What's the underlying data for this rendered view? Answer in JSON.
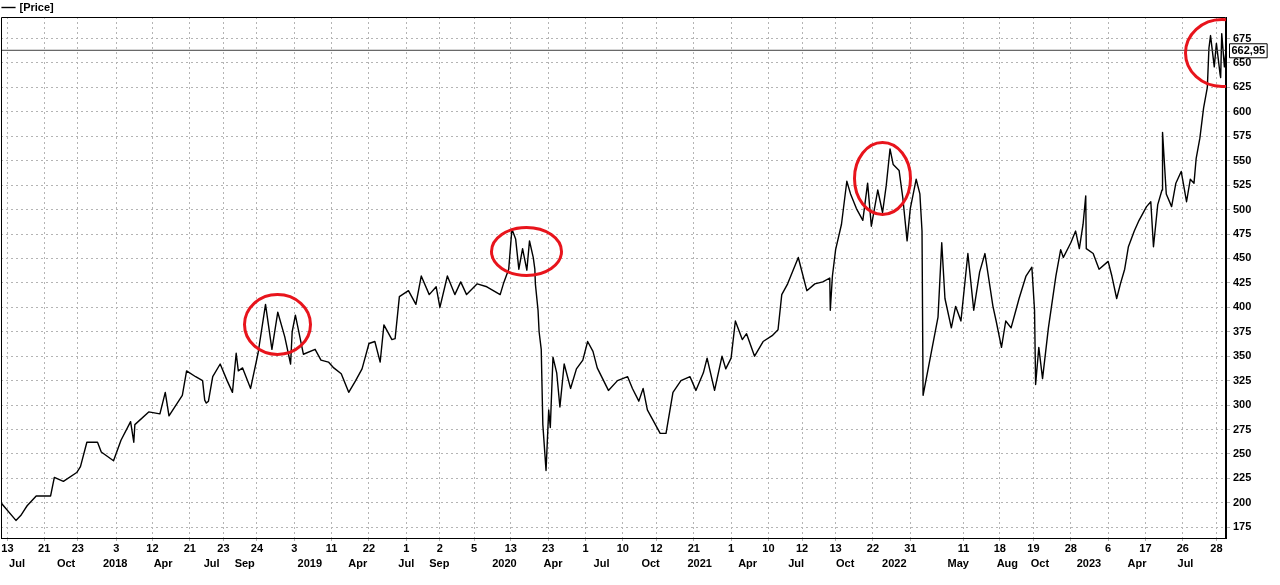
{
  "chart_data": {
    "type": "line",
    "legend": "top left",
    "grid": true,
    "marker": "none",
    "line_style": "solid",
    "x": [
      "2017-06-01",
      "2017-06-29",
      "2017-07-08",
      "2017-07-20",
      "2017-08-06",
      "2017-09-02",
      "2017-09-09",
      "2017-09-26",
      "2017-10-21",
      "2017-10-28",
      "2017-11-09",
      "2017-11-29",
      "2017-12-06",
      "2017-12-29",
      "2018-01-12",
      "2018-01-30",
      "2018-02-05",
      "2018-02-07",
      "2018-03-05",
      "2018-03-26",
      "2018-04-05",
      "2018-04-12",
      "2018-05-07",
      "2018-05-15",
      "2018-06-01",
      "2018-06-14",
      "2018-06-18",
      "2018-06-21",
      "2018-06-25",
      "2018-07-03",
      "2018-07-17",
      "2018-07-30",
      "2018-08-09",
      "2018-08-16",
      "2018-08-20",
      "2018-08-28",
      "2018-09-12",
      "2018-09-26",
      "2018-10-10",
      "2018-10-22",
      "2018-11-02",
      "2018-11-15",
      "2018-11-26",
      "2018-11-29",
      "2018-12-05",
      "2018-12-20",
      "2019-01-11",
      "2019-01-22",
      "2019-02-05",
      "2019-02-15",
      "2019-03-01",
      "2019-03-15",
      "2019-03-28",
      "2019-04-09",
      "2019-04-22",
      "2019-05-03",
      "2019-05-13",
      "2019-05-20",
      "2019-06-04",
      "2019-06-10",
      "2019-06-18",
      "2019-07-05",
      "2019-07-19",
      "2019-07-29",
      "2019-08-13",
      "2019-08-26",
      "2019-09-02",
      "2019-09-16",
      "2019-09-30",
      "2019-10-11",
      "2019-10-22",
      "2019-11-11",
      "2019-11-29",
      "2019-12-24",
      "2019-12-30",
      "2020-01-09",
      "2020-01-15",
      "2020-01-22",
      "2020-01-28",
      "2020-02-04",
      "2020-02-12",
      "2020-02-17",
      "2020-02-24",
      "2020-02-27",
      "2020-02-28",
      "2020-03-04",
      "2020-03-06",
      "2020-03-10",
      "2020-03-13",
      "2020-03-19",
      "2020-03-24",
      "2020-03-27",
      "2020-04-01",
      "2020-04-08",
      "2020-04-14",
      "2020-04-22",
      "2020-05-04",
      "2020-05-15",
      "2020-05-27",
      "2020-06-05",
      "2020-06-15",
      "2020-06-23",
      "2020-07-14",
      "2020-07-31",
      "2020-08-19",
      "2020-08-28",
      "2020-09-09",
      "2020-09-17",
      "2020-09-25",
      "2020-10-19",
      "2020-10-30",
      "2020-11-12",
      "2020-11-27",
      "2020-12-14",
      "2020-12-25",
      "2021-01-08",
      "2021-01-15",
      "2021-01-29",
      "2021-02-12",
      "2021-02-19",
      "2021-03-01",
      "2021-03-09",
      "2021-03-22",
      "2021-03-30",
      "2021-04-14",
      "2021-04-30",
      "2021-05-17",
      "2021-05-28",
      "2021-06-04",
      "2021-06-15",
      "2021-07-05",
      "2021-07-21",
      "2021-08-05",
      "2021-08-20",
      "2021-09-02",
      "2021-09-03",
      "2021-09-07",
      "2021-09-13",
      "2021-09-24",
      "2021-10-04",
      "2021-10-11",
      "2021-10-22",
      "2021-11-03",
      "2021-11-12",
      "2021-11-19",
      "2021-12-01",
      "2021-12-10",
      "2021-12-17",
      "2021-12-24",
      "2021-12-30",
      "2022-01-10",
      "2022-01-17",
      "2022-01-25",
      "2022-01-31",
      "2022-02-11",
      "2022-02-18",
      "2022-02-22",
      "2022-02-24",
      "2022-03-24",
      "2022-03-31",
      "2022-04-06",
      "2022-04-18",
      "2022-04-26",
      "2022-05-06",
      "2022-05-19",
      "2022-05-30",
      "2022-06-10",
      "2022-06-20",
      "2022-07-05",
      "2022-07-11",
      "2022-07-21",
      "2022-07-29",
      "2022-08-08",
      "2022-08-23",
      "2022-09-05",
      "2022-09-16",
      "2022-09-21",
      "2022-09-23",
      "2022-09-29",
      "2022-10-06",
      "2022-10-17",
      "2022-10-31",
      "2022-11-09",
      "2022-11-14",
      "2022-11-28",
      "2022-12-07",
      "2022-12-14",
      "2022-12-21",
      "2022-12-26",
      "2022-12-27",
      "2023-01-09",
      "2023-01-20",
      "2023-02-06",
      "2023-02-13",
      "2023-02-22",
      "2023-03-01",
      "2023-03-09",
      "2023-03-16",
      "2023-03-27",
      "2023-04-05",
      "2023-04-19",
      "2023-04-27",
      "2023-05-02",
      "2023-05-10",
      "2023-05-18",
      "2023-05-19",
      "2023-05-26",
      "2023-06-05",
      "2023-06-13",
      "2023-06-23",
      "2023-07-03",
      "2023-07-10",
      "2023-07-17",
      "2023-07-21",
      "2023-07-28",
      "2023-08-04",
      "2023-08-11",
      "2023-08-14",
      "2023-08-17",
      "2023-08-24",
      "2023-08-28",
      "2023-09-04",
      "2023-09-05",
      "2023-09-07",
      "2023-09-12",
      "2023-09-15"
    ],
    "series": [
      {
        "name": "[Price]",
        "color": "#000000",
        "values": [
          200,
          182,
          187,
          197,
          207,
          207,
          226,
          222,
          231,
          237,
          262,
          262,
          252,
          243,
          264,
          283,
          262,
          280,
          293,
          291,
          313,
          289,
          310,
          335,
          329,
          325,
          305,
          302,
          304,
          329,
          342,
          325,
          313,
          353,
          335,
          338,
          317,
          353,
          403,
          357,
          395,
          370,
          342,
          375,
          392,
          352,
          357,
          346,
          344,
          338,
          332,
          313,
          325,
          337,
          363,
          365,
          344,
          382,
          367,
          368,
          411,
          417,
          403,
          432,
          413,
          421,
          400,
          432,
          413,
          426,
          413,
          424,
          421,
          413,
          424,
          439,
          480,
          470,
          439,
          460,
          438,
          468,
          451,
          439,
          424,
          397,
          375,
          357,
          280,
          233,
          295,
          277,
          349,
          333,
          298,
          342,
          317,
          337,
          346,
          365,
          355,
          338,
          315,
          325,
          329,
          317,
          304,
          317,
          295,
          271,
          271,
          313,
          325,
          329,
          315,
          333,
          348,
          315,
          350,
          337,
          348,
          386,
          367,
          373,
          350,
          365,
          371,
          377,
          413,
          424,
          451,
          417,
          424,
          426,
          430,
          397,
          432,
          459,
          485,
          529,
          516,
          501,
          489,
          527,
          483,
          520,
          497,
          525,
          562,
          546,
          540,
          512,
          468,
          501,
          531,
          516,
          478,
          310,
          390,
          466,
          409,
          379,
          401,
          386,
          455,
          397,
          436,
          455,
          401,
          386,
          359,
          386,
          379,
          409,
          432,
          441,
          397,
          321,
          359,
          327,
          379,
          432,
          459,
          451,
          466,
          478,
          460,
          485,
          514,
          460,
          455,
          439,
          447,
          432,
          409,
          424,
          439,
          462,
          478,
          489,
          503,
          508,
          462,
          505,
          520,
          579,
          516,
          503,
          527,
          539,
          508,
          531,
          527,
          552,
          573,
          604,
          625,
          665,
          678,
          646,
          670,
          638,
          635,
          680,
          646,
          663
        ]
      }
    ],
    "xlim": [
      "2017-06-01",
      "2023-09-15"
    ],
    "xticks": [
      {
        "value": "2017-06-13",
        "label": "13"
      },
      {
        "value": "2017-08-21",
        "label": "21"
      },
      {
        "value": "2017-10-23",
        "label": "23"
      },
      {
        "value": "2018-01-03",
        "label": "3"
      },
      {
        "value": "2018-03-12",
        "label": "12"
      },
      {
        "value": "2018-05-21",
        "label": "21"
      },
      {
        "value": "2018-07-23",
        "label": "23"
      },
      {
        "value": "2018-09-24",
        "label": "24"
      },
      {
        "value": "2018-12-03",
        "label": "3"
      },
      {
        "value": "2019-02-11",
        "label": "11"
      },
      {
        "value": "2019-04-22",
        "label": "22"
      },
      {
        "value": "2019-07-01",
        "label": "1"
      },
      {
        "value": "2019-09-02",
        "label": "2"
      },
      {
        "value": "2019-11-05",
        "label": "5"
      },
      {
        "value": "2020-01-13",
        "label": "13"
      },
      {
        "value": "2020-03-23",
        "label": "23"
      },
      {
        "value": "2020-06-01",
        "label": "1"
      },
      {
        "value": "2020-08-10",
        "label": "10"
      },
      {
        "value": "2020-10-12",
        "label": "12"
      },
      {
        "value": "2020-12-21",
        "label": "21"
      },
      {
        "value": "2021-03-01",
        "label": "1"
      },
      {
        "value": "2021-05-10",
        "label": "10"
      },
      {
        "value": "2021-07-12",
        "label": "12"
      },
      {
        "value": "2021-09-13",
        "label": "13"
      },
      {
        "value": "2021-11-22",
        "label": "22"
      },
      {
        "value": "2022-01-31",
        "label": "31"
      },
      {
        "value": "2022-05-11",
        "label": "11"
      },
      {
        "value": "2022-07-18",
        "label": "18"
      },
      {
        "value": "2022-09-19",
        "label": "19"
      },
      {
        "value": "2022-11-28",
        "label": "28"
      },
      {
        "value": "2023-02-06",
        "label": "6"
      },
      {
        "value": "2023-04-17",
        "label": "17"
      },
      {
        "value": "2023-06-26",
        "label": "26"
      },
      {
        "value": "2023-08-28",
        "label": "28"
      }
    ],
    "x2lim": [
      "2017-06-01",
      "2023-09-15"
    ],
    "x2ticks": [
      {
        "value": "2017-07-01",
        "label": "Jul"
      },
      {
        "value": "2017-10-01",
        "label": "Oct"
      },
      {
        "value": "2018-01-01",
        "label": "2018"
      },
      {
        "value": "2018-04-01",
        "label": "Apr"
      },
      {
        "value": "2018-07-01",
        "label": "Jul"
      },
      {
        "value": "2018-09-01",
        "label": "Sep"
      },
      {
        "value": "2019-01-01",
        "label": "2019"
      },
      {
        "value": "2019-04-01",
        "label": "Apr"
      },
      {
        "value": "2019-07-01",
        "label": "Jul"
      },
      {
        "value": "2019-09-01",
        "label": "Sep"
      },
      {
        "value": "2020-01-01",
        "label": "2020"
      },
      {
        "value": "2020-04-01",
        "label": "Apr"
      },
      {
        "value": "2020-07-01",
        "label": "Jul"
      },
      {
        "value": "2020-10-01",
        "label": "Oct"
      },
      {
        "value": "2021-01-01",
        "label": "2021"
      },
      {
        "value": "2021-04-01",
        "label": "Apr"
      },
      {
        "value": "2021-07-01",
        "label": "Jul"
      },
      {
        "value": "2021-10-01",
        "label": "Oct"
      },
      {
        "value": "2022-01-01",
        "label": "2022"
      },
      {
        "value": "2022-05-01",
        "label": "May"
      },
      {
        "value": "2022-08-01",
        "label": "Aug"
      },
      {
        "value": "2022-10-01",
        "label": "Oct"
      },
      {
        "value": "2023-01-01",
        "label": "2023"
      },
      {
        "value": "2023-04-01",
        "label": "Apr"
      },
      {
        "value": "2023-07-01",
        "label": "Jul"
      }
    ],
    "ylim": [
      164,
      697
    ],
    "yticks": [
      175,
      200,
      225,
      250,
      275,
      300,
      325,
      350,
      375,
      400,
      425,
      450,
      475,
      500,
      525,
      550,
      575,
      600,
      625,
      650,
      675
    ],
    "ref_lines": [
      {
        "axis": "y",
        "value": 662.95,
        "label": "662,95",
        "color": "#404040"
      }
    ]
  }
}
